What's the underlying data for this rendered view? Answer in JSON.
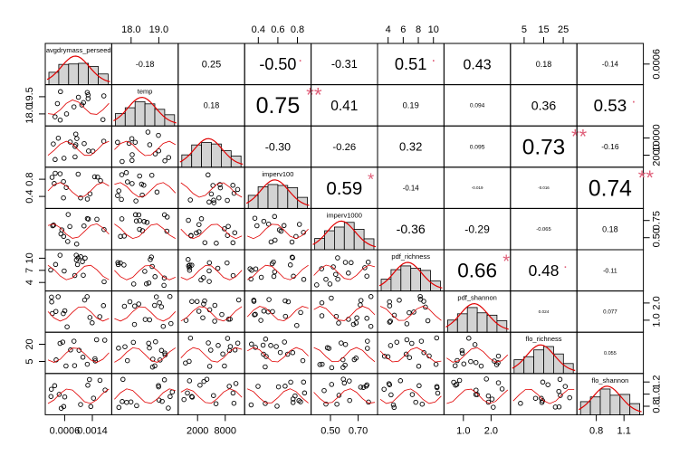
{
  "chart_data": {
    "type": "scatter-matrix",
    "variables": [
      "avgdrymass_perseed",
      "temp",
      "",
      "imperv100",
      "imperv1000",
      "pdf_richness",
      "pdf_shannon",
      "flo_richness",
      "flo_shannon"
    ],
    "correlations": [
      [
        null,
        "-0.18",
        "0.25",
        "-0.50",
        "-0.31",
        "0.51",
        "0.43",
        "0.18",
        "-0.14"
      ],
      [
        null,
        null,
        "0.18",
        "0.75",
        "0.41",
        "0.19",
        "0.094",
        "0.36",
        "0.53"
      ],
      [
        null,
        null,
        null,
        "-0.30",
        "-0.26",
        "0.32",
        "0.095",
        "0.73",
        "-0.16"
      ],
      [
        null,
        null,
        null,
        null,
        "0.59",
        "-0.14",
        "-0.019",
        "-0.016",
        "0.74"
      ],
      [
        null,
        null,
        null,
        null,
        null,
        "-0.36",
        "-0.29",
        "-0.065",
        "0.18"
      ],
      [
        null,
        null,
        null,
        null,
        null,
        null,
        "0.66",
        "0.48",
        "-0.11"
      ],
      [
        null,
        null,
        null,
        null,
        null,
        null,
        null,
        "0.024",
        "0.077"
      ],
      [
        null,
        null,
        null,
        null,
        null,
        null,
        null,
        null,
        "0.055"
      ]
    ],
    "stars": [
      [
        null,
        "",
        "",
        ".",
        "",
        ".",
        "",
        "",
        ""
      ],
      [
        null,
        null,
        "",
        "**",
        "",
        "",
        "",
        "",
        "."
      ],
      [
        null,
        null,
        null,
        "",
        "",
        "",
        "",
        "**",
        ""
      ],
      [
        null,
        null,
        null,
        null,
        "*",
        "",
        "",
        "",
        "**"
      ],
      [
        null,
        null,
        null,
        null,
        null,
        "",
        "",
        "",
        ""
      ],
      [
        null,
        null,
        null,
        null,
        null,
        null,
        "*",
        ".",
        ""
      ],
      [
        null,
        null,
        null,
        null,
        null,
        null,
        null,
        "",
        ""
      ],
      [
        null,
        null,
        null,
        null,
        null,
        null,
        null,
        null,
        ""
      ]
    ],
    "top_axis_ticks": [
      {
        "col": 1,
        "labels": [
          "18.0",
          "19.0"
        ]
      },
      {
        "col": 3,
        "labels": [
          "0.4",
          "0.6",
          "0.8"
        ]
      },
      {
        "col": 5,
        "labels": [
          "4",
          "6",
          "8",
          "10"
        ]
      },
      {
        "col": 7,
        "labels": [
          "5",
          "15",
          "25"
        ]
      }
    ],
    "bottom_axis_ticks": [
      {
        "col": 0,
        "labels": [
          "0.0006",
          "0.0014"
        ]
      },
      {
        "col": 2,
        "labels": [
          "2000",
          "8000"
        ]
      },
      {
        "col": 4,
        "labels": [
          "0.50",
          "0.70"
        ]
      },
      {
        "col": 6,
        "labels": [
          "1.0",
          "2.0"
        ]
      },
      {
        "col": 8,
        "labels": [
          "0.8",
          "1.1"
        ]
      }
    ],
    "left_axis_ticks": [
      {
        "row": 1,
        "labels": [
          "18.0",
          "19.5"
        ]
      },
      {
        "row": 3,
        "labels": [
          "0.4",
          "0.8"
        ]
      },
      {
        "row": 5,
        "labels": [
          "4",
          "7",
          "10"
        ]
      },
      {
        "row": 7,
        "labels": [
          "5",
          "20"
        ]
      }
    ],
    "right_axis_ticks": [
      {
        "row": 0,
        "labels": [
          "0.0006"
        ]
      },
      {
        "row": 2,
        "labels": [
          "2000",
          "10000"
        ]
      },
      {
        "row": 4,
        "labels": [
          "0.50",
          "0.75"
        ]
      },
      {
        "row": 6,
        "labels": [
          "1.0",
          "2.0"
        ]
      },
      {
        "row": 8,
        "labels": [
          "0.8",
          "1.0",
          "1.2"
        ]
      }
    ]
  }
}
